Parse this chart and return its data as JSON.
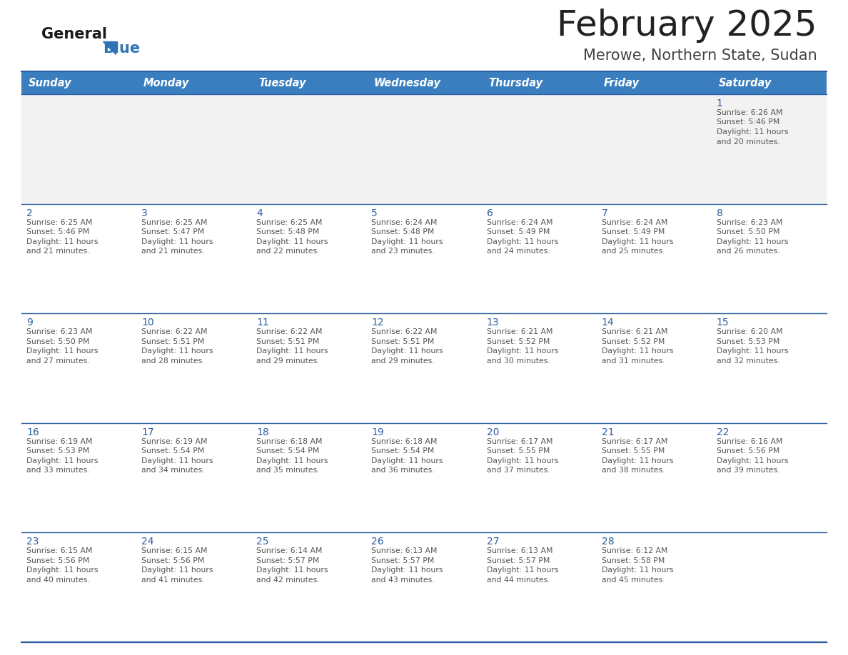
{
  "title": "February 2025",
  "subtitle": "Merowe, Northern State, Sudan",
  "days_of_week": [
    "Sunday",
    "Monday",
    "Tuesday",
    "Wednesday",
    "Thursday",
    "Friday",
    "Saturday"
  ],
  "header_bg": "#3a7ebf",
  "header_text": "#FFFFFF",
  "cell_bg_row0": "#F2F2F2",
  "cell_bg_other": "#FFFFFF",
  "day_number_color": "#2E5FA3",
  "text_color": "#555555",
  "divider_color": "#2E5FA3",
  "title_color": "#222222",
  "subtitle_color": "#444444",
  "calendar_data": [
    [
      null,
      null,
      null,
      null,
      null,
      null,
      {
        "day": 1,
        "sunrise": "6:26 AM",
        "sunset": "5:46 PM",
        "daylight": "11 hours and 20 minutes."
      }
    ],
    [
      {
        "day": 2,
        "sunrise": "6:25 AM",
        "sunset": "5:46 PM",
        "daylight": "11 hours and 21 minutes."
      },
      {
        "day": 3,
        "sunrise": "6:25 AM",
        "sunset": "5:47 PM",
        "daylight": "11 hours and 21 minutes."
      },
      {
        "day": 4,
        "sunrise": "6:25 AM",
        "sunset": "5:48 PM",
        "daylight": "11 hours and 22 minutes."
      },
      {
        "day": 5,
        "sunrise": "6:24 AM",
        "sunset": "5:48 PM",
        "daylight": "11 hours and 23 minutes."
      },
      {
        "day": 6,
        "sunrise": "6:24 AM",
        "sunset": "5:49 PM",
        "daylight": "11 hours and 24 minutes."
      },
      {
        "day": 7,
        "sunrise": "6:24 AM",
        "sunset": "5:49 PM",
        "daylight": "11 hours and 25 minutes."
      },
      {
        "day": 8,
        "sunrise": "6:23 AM",
        "sunset": "5:50 PM",
        "daylight": "11 hours and 26 minutes."
      }
    ],
    [
      {
        "day": 9,
        "sunrise": "6:23 AM",
        "sunset": "5:50 PM",
        "daylight": "11 hours and 27 minutes."
      },
      {
        "day": 10,
        "sunrise": "6:22 AM",
        "sunset": "5:51 PM",
        "daylight": "11 hours and 28 minutes."
      },
      {
        "day": 11,
        "sunrise": "6:22 AM",
        "sunset": "5:51 PM",
        "daylight": "11 hours and 29 minutes."
      },
      {
        "day": 12,
        "sunrise": "6:22 AM",
        "sunset": "5:51 PM",
        "daylight": "11 hours and 29 minutes."
      },
      {
        "day": 13,
        "sunrise": "6:21 AM",
        "sunset": "5:52 PM",
        "daylight": "11 hours and 30 minutes."
      },
      {
        "day": 14,
        "sunrise": "6:21 AM",
        "sunset": "5:52 PM",
        "daylight": "11 hours and 31 minutes."
      },
      {
        "day": 15,
        "sunrise": "6:20 AM",
        "sunset": "5:53 PM",
        "daylight": "11 hours and 32 minutes."
      }
    ],
    [
      {
        "day": 16,
        "sunrise": "6:19 AM",
        "sunset": "5:53 PM",
        "daylight": "11 hours and 33 minutes."
      },
      {
        "day": 17,
        "sunrise": "6:19 AM",
        "sunset": "5:54 PM",
        "daylight": "11 hours and 34 minutes."
      },
      {
        "day": 18,
        "sunrise": "6:18 AM",
        "sunset": "5:54 PM",
        "daylight": "11 hours and 35 minutes."
      },
      {
        "day": 19,
        "sunrise": "6:18 AM",
        "sunset": "5:54 PM",
        "daylight": "11 hours and 36 minutes."
      },
      {
        "day": 20,
        "sunrise": "6:17 AM",
        "sunset": "5:55 PM",
        "daylight": "11 hours and 37 minutes."
      },
      {
        "day": 21,
        "sunrise": "6:17 AM",
        "sunset": "5:55 PM",
        "daylight": "11 hours and 38 minutes."
      },
      {
        "day": 22,
        "sunrise": "6:16 AM",
        "sunset": "5:56 PM",
        "daylight": "11 hours and 39 minutes."
      }
    ],
    [
      {
        "day": 23,
        "sunrise": "6:15 AM",
        "sunset": "5:56 PM",
        "daylight": "11 hours and 40 minutes."
      },
      {
        "day": 24,
        "sunrise": "6:15 AM",
        "sunset": "5:56 PM",
        "daylight": "11 hours and 41 minutes."
      },
      {
        "day": 25,
        "sunrise": "6:14 AM",
        "sunset": "5:57 PM",
        "daylight": "11 hours and 42 minutes."
      },
      {
        "day": 26,
        "sunrise": "6:13 AM",
        "sunset": "5:57 PM",
        "daylight": "11 hours and 43 minutes."
      },
      {
        "day": 27,
        "sunrise": "6:13 AM",
        "sunset": "5:57 PM",
        "daylight": "11 hours and 44 minutes."
      },
      {
        "day": 28,
        "sunrise": "6:12 AM",
        "sunset": "5:58 PM",
        "daylight": "11 hours and 45 minutes."
      },
      null
    ]
  ],
  "header_font_size": 10.5,
  "day_number_font_size": 10,
  "cell_text_font_size": 7.8,
  "title_font_size": 36,
  "subtitle_font_size": 15
}
